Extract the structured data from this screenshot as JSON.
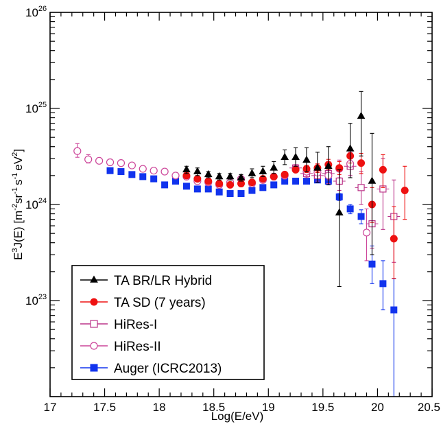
{
  "chart_data": {
    "type": "scatter",
    "xlabel": "Log(E/eV)",
    "ylabel_parts": {
      "p1": "E",
      "p1sup": "3",
      "p2": "J(E) [m",
      "p2sup": "-2",
      "p3": "sr",
      "p3sup": "-1",
      "p4": "s",
      "p4sup": "-1",
      "p5": "eV",
      "p5sup": "2",
      "p6": "]"
    },
    "xlim": [
      17,
      20.5
    ],
    "ylim": [
      1e+22,
      1e+26
    ],
    "yscale": "log",
    "x_ticks": [
      "17",
      "17.5",
      "18",
      "18.5",
      "19",
      "19.5",
      "20",
      "20.5"
    ],
    "y_ticks": [
      {
        "base": "10",
        "exp": "23",
        "value": 1e+23
      },
      {
        "base": "10",
        "exp": "24",
        "value": 1e+24
      },
      {
        "base": "10",
        "exp": "25",
        "value": 1e+25
      },
      {
        "base": "10",
        "exp": "26",
        "value": 1e+26
      }
    ],
    "grid": false,
    "legend_position": "bottom-left",
    "series": [
      {
        "name": "TA BR/LR Hybrid",
        "color": "#000000",
        "marker": "triangle-filled",
        "points": [
          {
            "x": 18.25,
            "y": 2.3e+24,
            "lo": 2.1e+24,
            "hi": 2.5e+24
          },
          {
            "x": 18.35,
            "y": 2.2e+24,
            "lo": 2e+24,
            "hi": 2.4e+24
          },
          {
            "x": 18.45,
            "y": 2.05e+24,
            "lo": 1.9e+24,
            "hi": 2.2e+24
          },
          {
            "x": 18.55,
            "y": 1.95e+24,
            "lo": 1.8e+24,
            "hi": 2.1e+24
          },
          {
            "x": 18.65,
            "y": 1.95e+24,
            "lo": 1.8e+24,
            "hi": 2.1e+24
          },
          {
            "x": 18.75,
            "y": 1.9e+24,
            "lo": 1.75e+24,
            "hi": 2.05e+24
          },
          {
            "x": 18.85,
            "y": 2.1e+24,
            "lo": 1.9e+24,
            "hi": 2.35e+24
          },
          {
            "x": 18.95,
            "y": 2.2e+24,
            "lo": 1.95e+24,
            "hi": 2.5e+24
          },
          {
            "x": 19.05,
            "y": 2.4e+24,
            "lo": 2.1e+24,
            "hi": 2.8e+24
          },
          {
            "x": 19.15,
            "y": 3.1e+24,
            "lo": 2.6e+24,
            "hi": 3.7e+24
          },
          {
            "x": 19.25,
            "y": 3.1e+24,
            "lo": 2.5e+24,
            "hi": 3.9e+24
          },
          {
            "x": 19.35,
            "y": 2.9e+24,
            "lo": 2.2e+24,
            "hi": 3.9e+24
          },
          {
            "x": 19.45,
            "y": 2.4e+24,
            "lo": 1.7e+24,
            "hi": 3.5e+24
          },
          {
            "x": 19.55,
            "y": 2.5e+24,
            "lo": 1.6e+24,
            "hi": 4e+24
          },
          {
            "x": 19.65,
            "y": 8.2e+23,
            "lo": 1.4e+23,
            "hi": 2.3e+24
          },
          {
            "x": 19.75,
            "y": 3.8e+24,
            "lo": 1.9e+24,
            "hi": 7e+24
          },
          {
            "x": 19.85,
            "y": 8.3e+24,
            "lo": 3.2e+24,
            "hi": 1.5e+25
          },
          {
            "x": 19.95,
            "y": 1.75e+24,
            "lo": 3e+23,
            "hi": 5.5e+24
          }
        ]
      },
      {
        "name": "TA SD (7 years)",
        "color": "#ee1111",
        "marker": "circle-filled",
        "points": [
          {
            "x": 18.25,
            "y": 2e+24,
            "lo": 1.95e+24,
            "hi": 2.05e+24
          },
          {
            "x": 18.35,
            "y": 1.85e+24,
            "lo": 1.8e+24,
            "hi": 1.9e+24
          },
          {
            "x": 18.45,
            "y": 1.75e+24,
            "lo": 1.7e+24,
            "hi": 1.8e+24
          },
          {
            "x": 18.55,
            "y": 1.65e+24,
            "lo": 1.6e+24,
            "hi": 1.7e+24
          },
          {
            "x": 18.65,
            "y": 1.6e+24,
            "lo": 1.55e+24,
            "hi": 1.65e+24
          },
          {
            "x": 18.75,
            "y": 1.65e+24,
            "lo": 1.6e+24,
            "hi": 1.7e+24
          },
          {
            "x": 18.85,
            "y": 1.7e+24,
            "lo": 1.65e+24,
            "hi": 1.78e+24
          },
          {
            "x": 18.95,
            "y": 1.85e+24,
            "lo": 1.78e+24,
            "hi": 1.93e+24
          },
          {
            "x": 19.05,
            "y": 1.95e+24,
            "lo": 1.86e+24,
            "hi": 2.05e+24
          },
          {
            "x": 19.15,
            "y": 2.05e+24,
            "lo": 1.95e+24,
            "hi": 2.17e+24
          },
          {
            "x": 19.25,
            "y": 2.3e+24,
            "lo": 2.15e+24,
            "hi": 2.45e+24
          },
          {
            "x": 19.35,
            "y": 2.35e+24,
            "lo": 2.15e+24,
            "hi": 2.55e+24
          },
          {
            "x": 19.45,
            "y": 2.4e+24,
            "lo": 2.15e+24,
            "hi": 2.65e+24
          },
          {
            "x": 19.55,
            "y": 2.6e+24,
            "lo": 2.3e+24,
            "hi": 2.95e+24
          },
          {
            "x": 19.65,
            "y": 2.4e+24,
            "lo": 2.05e+24,
            "hi": 2.8e+24
          },
          {
            "x": 19.75,
            "y": 3.2e+24,
            "lo": 2.7e+24,
            "hi": 3.8e+24
          },
          {
            "x": 19.85,
            "y": 2.7e+24,
            "lo": 2.1e+24,
            "hi": 3.4e+24
          },
          {
            "x": 19.95,
            "y": 1e+24,
            "lo": 6.5e+23,
            "hi": 1.5e+24
          },
          {
            "x": 20.05,
            "y": 2.3e+24,
            "lo": 1.5e+24,
            "hi": 3.3e+24
          },
          {
            "x": 20.15,
            "y": 4.4e+23,
            "lo": 1.7e+23,
            "hi": 9.5e+23
          },
          {
            "x": 20.25,
            "y": 1.4e+24,
            "lo": 7e+23,
            "hi": 2.5e+24
          }
        ]
      },
      {
        "name": "HiRes-I",
        "color": "#bb3388",
        "marker": "square-open",
        "points": [
          {
            "x": 19.25,
            "y": 2.4e+24,
            "lo": 2.2e+24,
            "hi": 2.6e+24
          },
          {
            "x": 19.35,
            "y": 2.1e+24,
            "lo": 1.9e+24,
            "hi": 2.35e+24
          },
          {
            "x": 19.45,
            "y": 2e+24,
            "lo": 1.75e+24,
            "hi": 2.3e+24
          },
          {
            "x": 19.55,
            "y": 2.1e+24,
            "lo": 1.8e+24,
            "hi": 2.5e+24
          },
          {
            "x": 19.65,
            "y": 1.75e+24,
            "lo": 1.4e+24,
            "hi": 2.2e+24
          },
          {
            "x": 19.75,
            "y": 2.5e+24,
            "lo": 2e+24,
            "hi": 3.1e+24
          },
          {
            "x": 19.85,
            "y": 1.5e+24,
            "lo": 1e+24,
            "hi": 2.2e+24
          },
          {
            "x": 19.95,
            "y": 6.3e+23,
            "lo": 3.5e+23,
            "hi": 1.05e+24
          },
          {
            "x": 20.05,
            "y": 1.45e+24,
            "lo": 5.5e+23,
            "hi": 3e+24
          },
          {
            "x": 20.15,
            "y": 7.5e+23,
            "lo": 2.5e+23,
            "hi": 1.8e+24
          }
        ]
      },
      {
        "name": "HiRes-II",
        "color": "#cc4499",
        "marker": "circle-open",
        "points": [
          {
            "x": 17.25,
            "y": 3.6e+24,
            "lo": 3.1e+24,
            "hi": 4.3e+24
          },
          {
            "x": 17.35,
            "y": 2.95e+24,
            "lo": 2.7e+24,
            "hi": 3.3e+24
          },
          {
            "x": 17.45,
            "y": 2.85e+24,
            "lo": 2.7e+24,
            "hi": 3e+24
          },
          {
            "x": 17.55,
            "y": 2.75e+24,
            "lo": 2.65e+24,
            "hi": 2.85e+24
          },
          {
            "x": 17.65,
            "y": 2.7e+24,
            "lo": 2.6e+24,
            "hi": 2.8e+24
          },
          {
            "x": 17.75,
            "y": 2.55e+24,
            "lo": 2.45e+24,
            "hi": 2.65e+24
          },
          {
            "x": 17.85,
            "y": 2.35e+24,
            "lo": 2.25e+24,
            "hi": 2.45e+24
          },
          {
            "x": 17.95,
            "y": 2.25e+24,
            "lo": 2.15e+24,
            "hi": 2.35e+24
          },
          {
            "x": 18.05,
            "y": 2.2e+24,
            "lo": 2.1e+24,
            "hi": 2.3e+24
          },
          {
            "x": 18.15,
            "y": 2e+24,
            "lo": 1.9e+24,
            "hi": 2.1e+24
          },
          {
            "x": 18.25,
            "y": 1.95e+24,
            "lo": 1.85e+24,
            "hi": 2.05e+24
          },
          {
            "x": 18.35,
            "y": 1.75e+24,
            "lo": 1.65e+24,
            "hi": 1.85e+24
          },
          {
            "x": 18.45,
            "y": 1.7e+24,
            "lo": 1.6e+24,
            "hi": 1.8e+24
          },
          {
            "x": 18.55,
            "y": 1.6e+24,
            "lo": 1.5e+24,
            "hi": 1.7e+24
          },
          {
            "x": 18.65,
            "y": 1.7e+24,
            "lo": 1.6e+24,
            "hi": 1.8e+24
          },
          {
            "x": 18.75,
            "y": 1.85e+24,
            "lo": 1.74e+24,
            "hi": 1.96e+24
          },
          {
            "x": 18.85,
            "y": 1.65e+24,
            "lo": 1.55e+24,
            "hi": 1.76e+24
          },
          {
            "x": 18.95,
            "y": 1.8e+24,
            "lo": 1.68e+24,
            "hi": 1.93e+24
          },
          {
            "x": 19.05,
            "y": 1.95e+24,
            "lo": 1.8e+24,
            "hi": 2.1e+24
          },
          {
            "x": 19.15,
            "y": 2e+24,
            "lo": 1.85e+24,
            "hi": 2.2e+24
          },
          {
            "x": 19.25,
            "y": 2.35e+24,
            "lo": 2.15e+24,
            "hi": 2.6e+24
          },
          {
            "x": 19.35,
            "y": 2.2e+24,
            "lo": 1.95e+24,
            "hi": 2.5e+24
          },
          {
            "x": 19.45,
            "y": 2.15e+24,
            "lo": 1.85e+24,
            "hi": 2.5e+24
          },
          {
            "x": 19.55,
            "y": 2e+24,
            "lo": 1.65e+24,
            "hi": 2.4e+24
          },
          {
            "x": 19.65,
            "y": 2.35e+24,
            "lo": 1.9e+24,
            "hi": 2.9e+24
          },
          {
            "x": 19.75,
            "y": 2.65e+24,
            "lo": 2e+24,
            "hi": 3.5e+24
          },
          {
            "x": 19.9,
            "y": 5.1e+23,
            "lo": 2.6e+23,
            "hi": 9e+23
          }
        ]
      },
      {
        "name": "Auger (ICRC2013)",
        "color": "#1133ee",
        "marker": "square-filled",
        "points": [
          {
            "x": 17.55,
            "y": 2.25e+24,
            "lo": 2.2e+24,
            "hi": 2.3e+24
          },
          {
            "x": 17.65,
            "y": 2.2e+24,
            "lo": 2.15e+24,
            "hi": 2.25e+24
          },
          {
            "x": 17.75,
            "y": 2.05e+24,
            "lo": 2e+24,
            "hi": 2.1e+24
          },
          {
            "x": 17.85,
            "y": 1.95e+24,
            "lo": 1.9e+24,
            "hi": 2e+24
          },
          {
            "x": 17.95,
            "y": 1.85e+24,
            "lo": 1.8e+24,
            "hi": 1.9e+24
          },
          {
            "x": 18.05,
            "y": 1.6e+24,
            "lo": 1.56e+24,
            "hi": 1.64e+24
          },
          {
            "x": 18.15,
            "y": 1.75e+24,
            "lo": 1.71e+24,
            "hi": 1.79e+24
          },
          {
            "x": 18.25,
            "y": 1.55e+24,
            "lo": 1.51e+24,
            "hi": 1.59e+24
          },
          {
            "x": 18.35,
            "y": 1.45e+24,
            "lo": 1.41e+24,
            "hi": 1.49e+24
          },
          {
            "x": 18.45,
            "y": 1.45e+24,
            "lo": 1.41e+24,
            "hi": 1.49e+24
          },
          {
            "x": 18.55,
            "y": 1.35e+24,
            "lo": 1.31e+24,
            "hi": 1.39e+24
          },
          {
            "x": 18.65,
            "y": 1.3e+24,
            "lo": 1.26e+24,
            "hi": 1.34e+24
          },
          {
            "x": 18.75,
            "y": 1.3e+24,
            "lo": 1.26e+24,
            "hi": 1.34e+24
          },
          {
            "x": 18.85,
            "y": 1.4e+24,
            "lo": 1.36e+24,
            "hi": 1.44e+24
          },
          {
            "x": 18.95,
            "y": 1.5e+24,
            "lo": 1.46e+24,
            "hi": 1.54e+24
          },
          {
            "x": 19.05,
            "y": 1.6e+24,
            "lo": 1.55e+24,
            "hi": 1.65e+24
          },
          {
            "x": 19.15,
            "y": 1.75e+24,
            "lo": 1.7e+24,
            "hi": 1.8e+24
          },
          {
            "x": 19.25,
            "y": 1.75e+24,
            "lo": 1.69e+24,
            "hi": 1.81e+24
          },
          {
            "x": 19.35,
            "y": 1.75e+24,
            "lo": 1.68e+24,
            "hi": 1.82e+24
          },
          {
            "x": 19.45,
            "y": 1.8e+24,
            "lo": 1.72e+24,
            "hi": 1.88e+24
          },
          {
            "x": 19.55,
            "y": 1.75e+24,
            "lo": 1.65e+24,
            "hi": 1.85e+24
          },
          {
            "x": 19.65,
            "y": 1.2e+24,
            "lo": 1.1e+24,
            "hi": 1.3e+24
          },
          {
            "x": 19.75,
            "y": 9e+23,
            "lo": 8e+23,
            "hi": 1e+24
          },
          {
            "x": 19.85,
            "y": 7.5e+23,
            "lo": 6.3e+23,
            "hi": 8.8e+23
          },
          {
            "x": 19.95,
            "y": 2.4e+23,
            "lo": 1.5e+23,
            "hi": 3.7e+23
          },
          {
            "x": 20.05,
            "y": 1.5e+23,
            "lo": 8e+22,
            "hi": 2.6e+23
          },
          {
            "x": 20.15,
            "y": 8e+22,
            "lo": 1e+22,
            "hi": 1.7e+23
          }
        ]
      }
    ]
  }
}
